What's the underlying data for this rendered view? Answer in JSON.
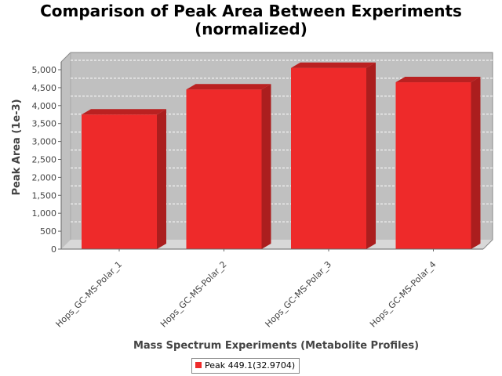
{
  "chart_data": {
    "type": "bar",
    "title_lines": [
      "Comparison of Peak Area Between Experiments",
      "(normalized)"
    ],
    "xlabel": "Mass Spectrum Experiments (Metabolite Profiles)",
    "ylabel": "Peak Area (1e-3)",
    "categories": [
      "Hops_GC-MS-Polar_1",
      "Hops_GC-MS-Polar_2",
      "Hops_GC-MS-Polar_3",
      "Hops_GC-MS-Polar_4"
    ],
    "series": [
      {
        "name": "Peak 449.1(32.9704)",
        "values": [
          3750,
          4450,
          5050,
          4650
        ],
        "color": "#ee2a2a"
      }
    ],
    "ylim": [
      0,
      5000
    ],
    "yticks": [
      0,
      500,
      1000,
      1500,
      2000,
      2500,
      3000,
      3500,
      4000,
      4500,
      5000
    ],
    "ytick_labels": [
      "0",
      "500",
      "1,000",
      "1,500",
      "2,000",
      "2,500",
      "3,000",
      "3,500",
      "4,000",
      "4,500",
      "5,000"
    ],
    "grid": true,
    "legend_position": "bottom-center",
    "plot_background": "#c0c0c0"
  }
}
